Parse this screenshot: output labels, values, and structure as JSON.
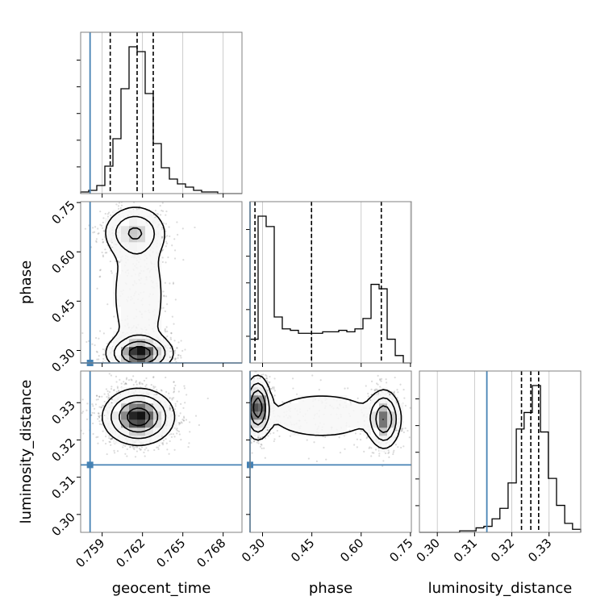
{
  "chart_data": {
    "type": "corner",
    "parameters": [
      "geocent_time",
      "phase",
      "luminosity_distance"
    ],
    "truths": {
      "geocent_time": 0.7581,
      "phase": 0.262,
      "luminosity_distance": 0.3133
    },
    "colors": {
      "truth": "#4682b4",
      "contour": "#000000",
      "grid": "#c0c0c0",
      "axes": "#808080"
    },
    "grid": true,
    "ranges": {
      "geocent_time": [
        0.7574,
        0.7694
      ],
      "phase": [
        0.262,
        0.7527
      ],
      "luminosity_distance": [
        0.2952,
        0.3385
      ]
    },
    "ticks": {
      "geocent_time": [
        "0.759",
        "0.762",
        "0.765",
        "0.768"
      ],
      "phase": [
        "0.30",
        "0.45",
        "0.60",
        "0.75"
      ],
      "luminosity_distance": [
        "0.30",
        "0.31",
        "0.32",
        "0.33"
      ]
    },
    "xlabels": {
      "geocent_time": "geocent_time",
      "phase": "phase",
      "luminosity_distance": "luminosity_distance"
    },
    "ylabels": {
      "phase": "phase",
      "luminosity_distance": "luminosity_distance"
    },
    "histograms": [
      {
        "parameter": "geocent_time",
        "quantiles": [
          0.7596,
          0.7616,
          0.7628
        ],
        "bin_edges": [
          0.7574,
          0.758,
          0.7586,
          0.7592,
          0.7598,
          0.7604,
          0.761,
          0.7616,
          0.7622,
          0.7628,
          0.7634,
          0.764,
          0.7646,
          0.7652,
          0.7658,
          0.7664,
          0.767,
          0.7676,
          0.7682,
          0.7688,
          0.7694
        ],
        "counts": [
          1,
          2,
          5,
          17,
          34,
          65,
          91,
          88,
          62,
          31,
          16,
          9,
          6,
          4,
          2,
          1,
          1,
          0,
          0,
          0
        ]
      },
      {
        "parameter": "phase",
        "quantiles": [
          0.277,
          0.449,
          0.6613
        ],
        "bin_edges": [
          0.262,
          0.2865,
          0.311,
          0.3356,
          0.3601,
          0.3847,
          0.4092,
          0.4337,
          0.4583,
          0.4828,
          0.5074,
          0.5319,
          0.5564,
          0.581,
          0.6055,
          0.6301,
          0.6546,
          0.6791,
          0.7037,
          0.7282,
          0.7527
        ],
        "counts": [
          16,
          99,
          92,
          31,
          23,
          22,
          20,
          20,
          20,
          21,
          21,
          22,
          21,
          23,
          30,
          53,
          50,
          16,
          5,
          0
        ]
      },
      {
        "parameter": "luminosity_distance",
        "quantiles": [
          0.3226,
          0.3251,
          0.3272
        ],
        "bin_edges": [
          0.2952,
          0.2974,
          0.2995,
          0.3017,
          0.3039,
          0.306,
          0.3082,
          0.3104,
          0.3125,
          0.3147,
          0.3168,
          0.319,
          0.3212,
          0.3233,
          0.3255,
          0.3277,
          0.3298,
          0.332,
          0.3342,
          0.3363,
          0.3385
        ],
        "counts": [
          0,
          0,
          0,
          0,
          0,
          1,
          1,
          3,
          4,
          9,
          16,
          33,
          69,
          80,
          98,
          67,
          36,
          18,
          6,
          2
        ]
      }
    ],
    "density_2d": [
      {
        "x": "geocent_time",
        "y": "phase",
        "modes": [
          {
            "x": 0.7618,
            "y": 0.291,
            "sx": 0.0012,
            "sy": 0.028,
            "w": 1.0
          },
          {
            "x": 0.7614,
            "y": 0.66,
            "sx": 0.0012,
            "sy": 0.04,
            "w": 0.55
          },
          {
            "x": 0.7617,
            "y": 0.47,
            "sx": 0.0013,
            "sy": 0.13,
            "w": 0.3
          }
        ]
      },
      {
        "x": "geocent_time",
        "y": "luminosity_distance",
        "modes": [
          {
            "x": 0.7617,
            "y": 0.3262,
            "sx": 0.0013,
            "sy": 0.0037,
            "w": 1.0
          }
        ]
      },
      {
        "x": "phase",
        "y": "luminosity_distance",
        "modes": [
          {
            "x": 0.285,
            "y": 0.3288,
            "sx": 0.02,
            "sy": 0.0042,
            "w": 1.0
          },
          {
            "x": 0.67,
            "y": 0.3255,
            "sx": 0.025,
            "sy": 0.004,
            "w": 0.8
          },
          {
            "x": 0.48,
            "y": 0.3265,
            "sx": 0.11,
            "sy": 0.004,
            "w": 0.3
          }
        ]
      }
    ]
  }
}
